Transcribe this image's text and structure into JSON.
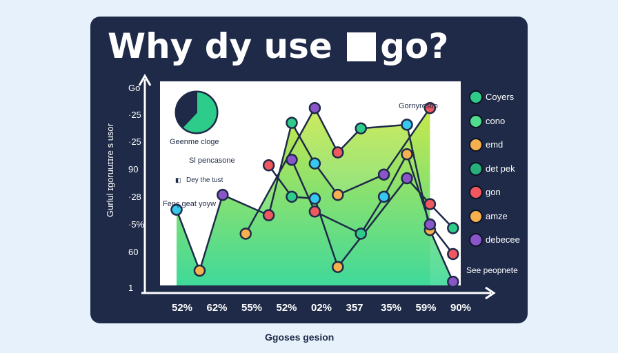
{
  "title_prefix": "Why dy use",
  "title_suffix": "go?",
  "chart_data": {
    "type": "area",
    "title": "Why dy use go?",
    "xlabel": "Ggoses gesion",
    "ylabel": "Gurlul ɪgoruuɪɪɾe s usor",
    "yticks": [
      "Go",
      "·25",
      "·25",
      "90",
      "·28",
      "·5%",
      "60",
      "1"
    ],
    "x_tick_labels": [
      "52%",
      "62%",
      "55%",
      "52%",
      "02%",
      "357",
      "35%",
      "59%",
      "90%"
    ],
    "annotations": {
      "pie_label": "Geenme cloge",
      "series_label": "Gornyrestio",
      "note1": "Sl pencasone",
      "note2": "Dey the tust",
      "note3": "Fenç geat yoyw",
      "note4": "See peopnete"
    },
    "legend": [
      {
        "label": "Coyers",
        "color": "#2ecc8a"
      },
      {
        "label": "cono",
        "color": "#4fdc8c"
      },
      {
        "label": "emd",
        "color": "#f6b04d"
      },
      {
        "label": "det pek",
        "color": "#27b07b"
      },
      {
        "label": "gon",
        "color": "#f0575e"
      },
      {
        "label": "amze",
        "color": "#f6b04d"
      },
      {
        "label": "debecee",
        "color": "#8a55c9"
      }
    ],
    "series": [
      {
        "x": [
          1,
          2,
          3,
          5,
          6,
          7,
          8,
          10,
          12
        ],
        "y": [
          41,
          8,
          49,
          38,
          88,
          66,
          49,
          60,
          96
        ]
      },
      {
        "x": [
          4,
          7,
          8,
          9,
          11,
          12,
          13
        ],
        "y": [
          28,
          96,
          72,
          85,
          87,
          30,
          2
        ]
      },
      {
        "x": [
          6,
          7,
          9,
          10,
          11,
          12,
          13
        ],
        "y": [
          68,
          40,
          28,
          48,
          71,
          33,
          17
        ]
      },
      {
        "x": [
          5,
          6,
          7,
          8,
          11,
          12,
          13
        ],
        "y": [
          65,
          48,
          47,
          10,
          58,
          44,
          31
        ]
      }
    ]
  },
  "pie": {
    "slices": [
      {
        "value": 62,
        "color": "#2ecc8a"
      },
      {
        "value": 38,
        "color": "#1e2a48"
      }
    ]
  }
}
